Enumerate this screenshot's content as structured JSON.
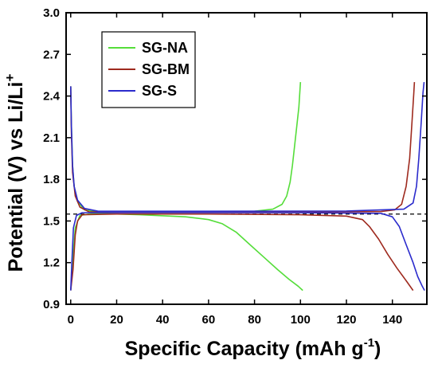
{
  "chart_data": {
    "type": "line",
    "xlabel": "Specific Capacity (mAh g",
    "xlabel_sup": "-1",
    "xlabel_close": ")",
    "ylabel": "Potential (V) vs Li/Li",
    "ylabel_sup": "+",
    "xlim": [
      -2,
      155
    ],
    "ylim": [
      0.9,
      3.0
    ],
    "x_ticks": [
      "0",
      "20",
      "40",
      "60",
      "80",
      "100",
      "120",
      "140"
    ],
    "y_ticks": [
      "0.9",
      "1.2",
      "1.5",
      "1.8",
      "2.1",
      "2.4",
      "2.7",
      "3.0"
    ],
    "grid": false,
    "legend_position": "top-left",
    "reference_line": {
      "y": 1.55,
      "style": "dashed",
      "color": "#000000"
    },
    "series": [
      {
        "name": "SG-NA",
        "color": "#55dd3a",
        "segments": [
          {
            "part": "charge",
            "points": [
              [
                0,
                2.47
              ],
              [
                0.3,
                2.2
              ],
              [
                0.8,
                1.9
              ],
              [
                1.5,
                1.75
              ],
              [
                3,
                1.64
              ],
              [
                6,
                1.58
              ],
              [
                12,
                1.565
              ],
              [
                30,
                1.565
              ],
              [
                60,
                1.565
              ],
              [
                80,
                1.57
              ],
              [
                88,
                1.585
              ],
              [
                92,
                1.62
              ],
              [
                94,
                1.68
              ],
              [
                95.5,
                1.78
              ],
              [
                96.5,
                1.9
              ],
              [
                97.5,
                2.05
              ],
              [
                98.5,
                2.2
              ],
              [
                99.3,
                2.32
              ],
              [
                100,
                2.5
              ]
            ]
          },
          {
            "part": "discharge",
            "points": [
              [
                0,
                1.0
              ],
              [
                0.5,
                1.1
              ],
              [
                1,
                1.25
              ],
              [
                2,
                1.45
              ],
              [
                4,
                1.54
              ],
              [
                10,
                1.555
              ],
              [
                30,
                1.545
              ],
              [
                50,
                1.53
              ],
              [
                60,
                1.51
              ],
              [
                66,
                1.48
              ],
              [
                72,
                1.42
              ],
              [
                78,
                1.33
              ],
              [
                84,
                1.24
              ],
              [
                90,
                1.15
              ],
              [
                95,
                1.08
              ],
              [
                99,
                1.03
              ],
              [
                101,
                1.0
              ]
            ]
          }
        ]
      },
      {
        "name": "SG-BM",
        "color": "#9e2a1e",
        "segments": [
          {
            "part": "charge",
            "points": [
              [
                0,
                2.47
              ],
              [
                0.3,
                2.15
              ],
              [
                0.8,
                1.85
              ],
              [
                2,
                1.68
              ],
              [
                4,
                1.6
              ],
              [
                8,
                1.565
              ],
              [
                30,
                1.565
              ],
              [
                100,
                1.565
              ],
              [
                135,
                1.568
              ],
              [
                141,
                1.58
              ],
              [
                144,
                1.62
              ],
              [
                146,
                1.75
              ],
              [
                147.5,
                1.95
              ],
              [
                148.5,
                2.2
              ],
              [
                149.3,
                2.42
              ],
              [
                149.6,
                2.5
              ]
            ]
          },
          {
            "part": "discharge",
            "points": [
              [
                0,
                1.0
              ],
              [
                1,
                1.15
              ],
              [
                2,
                1.4
              ],
              [
                3,
                1.5
              ],
              [
                5,
                1.545
              ],
              [
                20,
                1.55
              ],
              [
                60,
                1.55
              ],
              [
                100,
                1.545
              ],
              [
                120,
                1.535
              ],
              [
                127,
                1.51
              ],
              [
                130,
                1.46
              ],
              [
                134,
                1.37
              ],
              [
                138,
                1.26
              ],
              [
                142,
                1.16
              ],
              [
                146,
                1.07
              ],
              [
                149,
                1.0
              ]
            ]
          }
        ]
      },
      {
        "name": "SG-S",
        "color": "#2b2bcc",
        "segments": [
          {
            "part": "charge",
            "points": [
              [
                0,
                2.47
              ],
              [
                0.3,
                2.2
              ],
              [
                0.8,
                1.9
              ],
              [
                1.5,
                1.75
              ],
              [
                3,
                1.65
              ],
              [
                6,
                1.59
              ],
              [
                12,
                1.57
              ],
              [
                60,
                1.57
              ],
              [
                120,
                1.572
              ],
              [
                145,
                1.585
              ],
              [
                149,
                1.63
              ],
              [
                150.5,
                1.75
              ],
              [
                151.5,
                1.95
              ],
              [
                152.5,
                2.2
              ],
              [
                153.3,
                2.42
              ],
              [
                153.8,
                2.5
              ]
            ]
          },
          {
            "part": "discharge",
            "points": [
              [
                0,
                1.0
              ],
              [
                0.5,
                1.2
              ],
              [
                1.2,
                1.45
              ],
              [
                2.5,
                1.54
              ],
              [
                5,
                1.56
              ],
              [
                30,
                1.56
              ],
              [
                100,
                1.56
              ],
              [
                135,
                1.555
              ],
              [
                140,
                1.53
              ],
              [
                143,
                1.46
              ],
              [
                146,
                1.33
              ],
              [
                149,
                1.2
              ],
              [
                151,
                1.1
              ],
              [
                153,
                1.03
              ],
              [
                154,
                1.0
              ]
            ]
          }
        ]
      }
    ]
  }
}
